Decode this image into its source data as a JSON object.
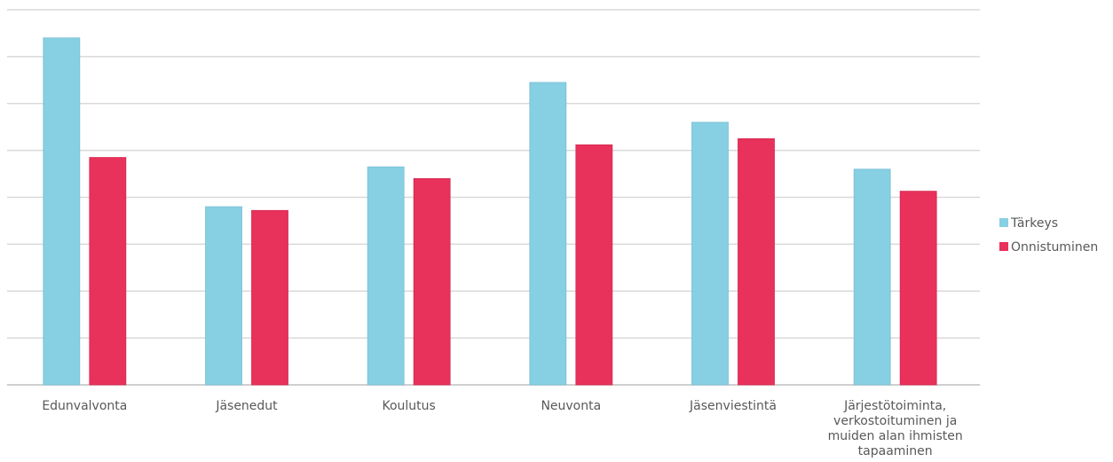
{
  "chart_data": {
    "type": "bar",
    "categories": [
      [
        "Edunvalvonta"
      ],
      [
        "Jäsenedut"
      ],
      [
        "Koulutus"
      ],
      [
        "Neuvonta"
      ],
      [
        "Jäsenviestintä"
      ],
      [
        "Järjestötoiminta,",
        "verkostoituminen ja",
        "muiden alan ihmisten",
        "tapaaminen"
      ]
    ],
    "series": [
      {
        "name": "Tärkeys",
        "color": "#87cfe3",
        "values": [
          7.4,
          3.8,
          4.65,
          6.45,
          5.6,
          4.6
        ]
      },
      {
        "name": "Onnistuminen",
        "color": "#e8315b",
        "values": [
          4.85,
          3.72,
          4.4,
          5.12,
          5.25,
          4.13
        ]
      }
    ],
    "ylim": [
      0,
      8
    ],
    "grid": true,
    "legend_position": "right"
  }
}
